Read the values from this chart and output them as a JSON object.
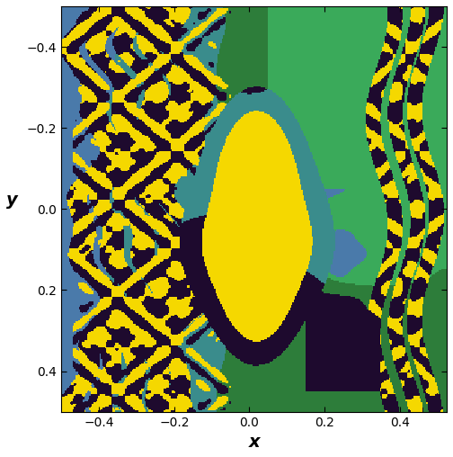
{
  "title": "",
  "xlabel": "x",
  "ylabel": "y",
  "xlim": [
    -0.5,
    0.525
  ],
  "ylim": [
    -0.5,
    0.5
  ],
  "xticks": [
    -0.4,
    -0.2,
    0.0,
    0.2,
    0.4
  ],
  "yticks": [
    -0.4,
    -0.2,
    0.0,
    0.2,
    0.4
  ],
  "colors": {
    "yellow": "#f5d800",
    "teal": "#3a8c8c",
    "green": "#2d7d3a",
    "blue": "#4a7aaa",
    "purple": "#1e0a2e",
    "ltgreen": "#3aaa5a"
  },
  "figsize": [
    5.04,
    5.08
  ],
  "dpi": 100,
  "grid_size": 300
}
